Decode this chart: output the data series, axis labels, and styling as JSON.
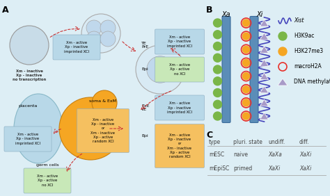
{
  "background_color": "#ddeef5",
  "panel_A_label": "A",
  "panel_B_label": "B",
  "panel_C_label": "C",
  "xa_label": "Xa",
  "xi_label": "Xi",
  "chromosome_color": "#5b8db8",
  "green_dot_color": "#7ab648",
  "orange_dot_color": "#f5a623",
  "red_circle_color": "#e8302a",
  "triangle_color": "#a89bc8",
  "xist_color": "#4444bb",
  "table_C": {
    "headers": [
      "type",
      "pluri. state",
      "undiff.",
      "diff."
    ],
    "rows": [
      [
        "mESC",
        "naive",
        "XaXa",
        "XaXi"
      ],
      [
        "mEpiSC",
        "primed",
        "XaXi",
        "XaXi"
      ]
    ]
  }
}
